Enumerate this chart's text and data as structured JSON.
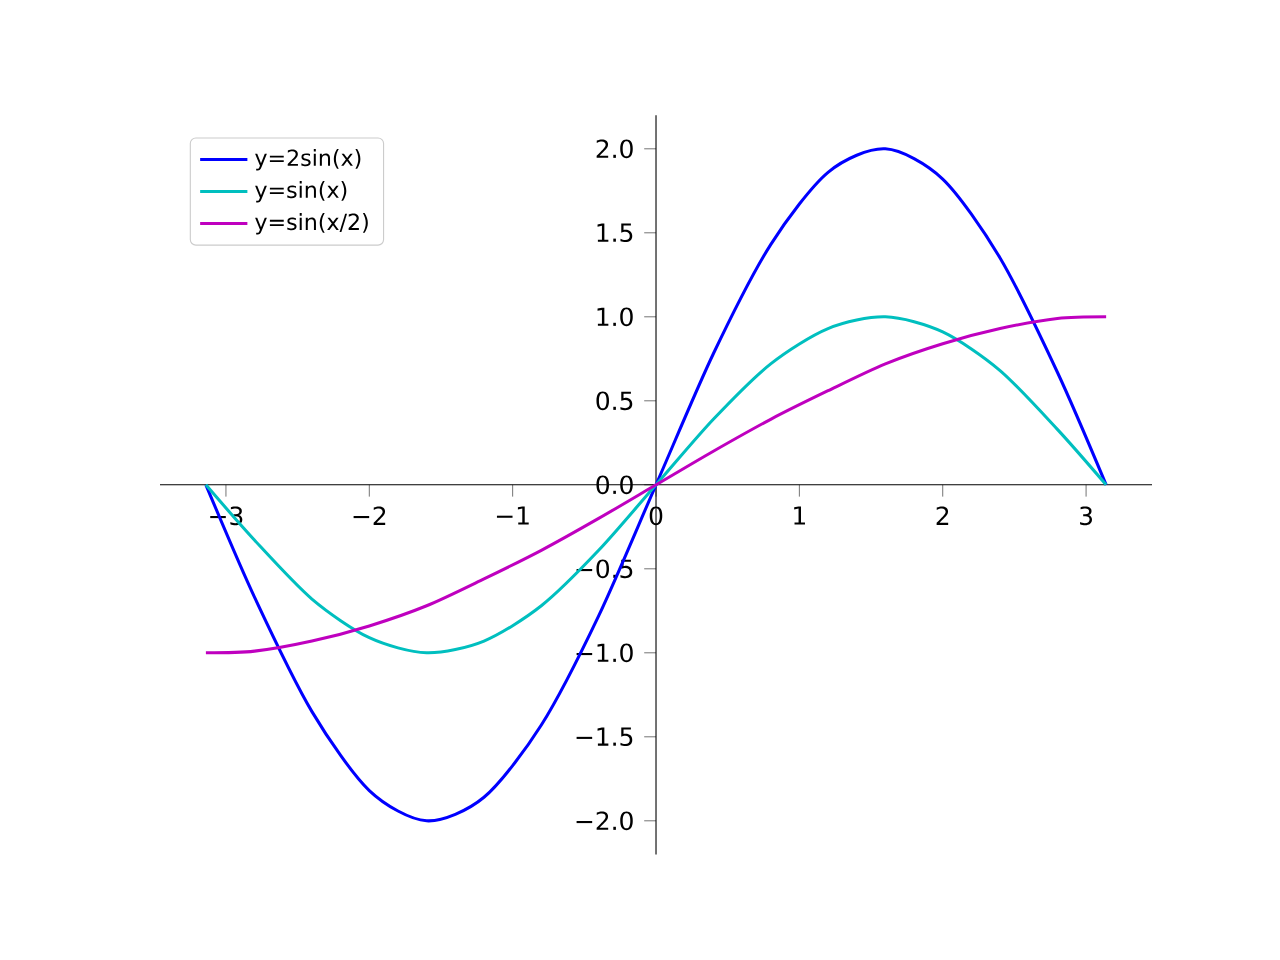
{
  "chart_data": {
    "type": "line",
    "legend": "top left",
    "marker": "none",
    "line_style": "solid",
    "grid": false,
    "x": [
      -3.14,
      -2.8,
      -2.4,
      -2.0,
      -1.6,
      -1.2,
      -0.8,
      -0.4,
      0,
      0.4,
      0.8,
      1.2,
      1.6,
      2.0,
      2.4,
      2.8,
      3.14
    ],
    "series": [
      {
        "name": "y=2sin(x)",
        "color": "#0000ff",
        "values": [
          0,
          -0.67,
          -1.35,
          -1.82,
          -2.0,
          -1.86,
          -1.43,
          -0.78,
          0,
          0.78,
          1.43,
          1.86,
          2.0,
          1.82,
          1.35,
          0.67,
          0
        ]
      },
      {
        "name": "y=sin(x)",
        "color": "#00bfbf",
        "values": [
          0,
          -0.33,
          -0.68,
          -0.91,
          -1.0,
          -0.93,
          -0.72,
          -0.39,
          0,
          0.39,
          0.72,
          0.93,
          1.0,
          0.91,
          0.68,
          0.33,
          0
        ]
      },
      {
        "name": "y=sin(x/2)",
        "color": "#bf00bf",
        "values": [
          -1.0,
          -0.99,
          -0.93,
          -0.84,
          -0.72,
          -0.56,
          -0.39,
          -0.2,
          0,
          0.2,
          0.39,
          0.56,
          0.72,
          0.84,
          0.93,
          0.99,
          1.0
        ]
      }
    ],
    "xlim": [
      -3.46,
      3.46
    ],
    "ylim": [
      -2.2,
      2.2
    ],
    "xticks": [
      {
        "value": -3,
        "label": "−3"
      },
      {
        "value": -2,
        "label": "−2"
      },
      {
        "value": -1,
        "label": "−1"
      },
      {
        "value": 0,
        "label": "0"
      },
      {
        "value": 1,
        "label": "1"
      },
      {
        "value": 2,
        "label": "2"
      },
      {
        "value": 3,
        "label": "3"
      }
    ],
    "yticks": [
      {
        "value": -2,
        "label": "−2.0"
      },
      {
        "value": -1.5,
        "label": "−1.5"
      },
      {
        "value": -1,
        "label": "−1.0"
      },
      {
        "value": -0.5,
        "label": "−0.5"
      },
      {
        "value": 0,
        "label": "0.0"
      },
      {
        "value": 0.5,
        "label": "0.5"
      },
      {
        "value": 1,
        "label": "1.0"
      },
      {
        "value": 1.5,
        "label": "1.5"
      },
      {
        "value": 2,
        "label": "2.0"
      }
    ]
  }
}
